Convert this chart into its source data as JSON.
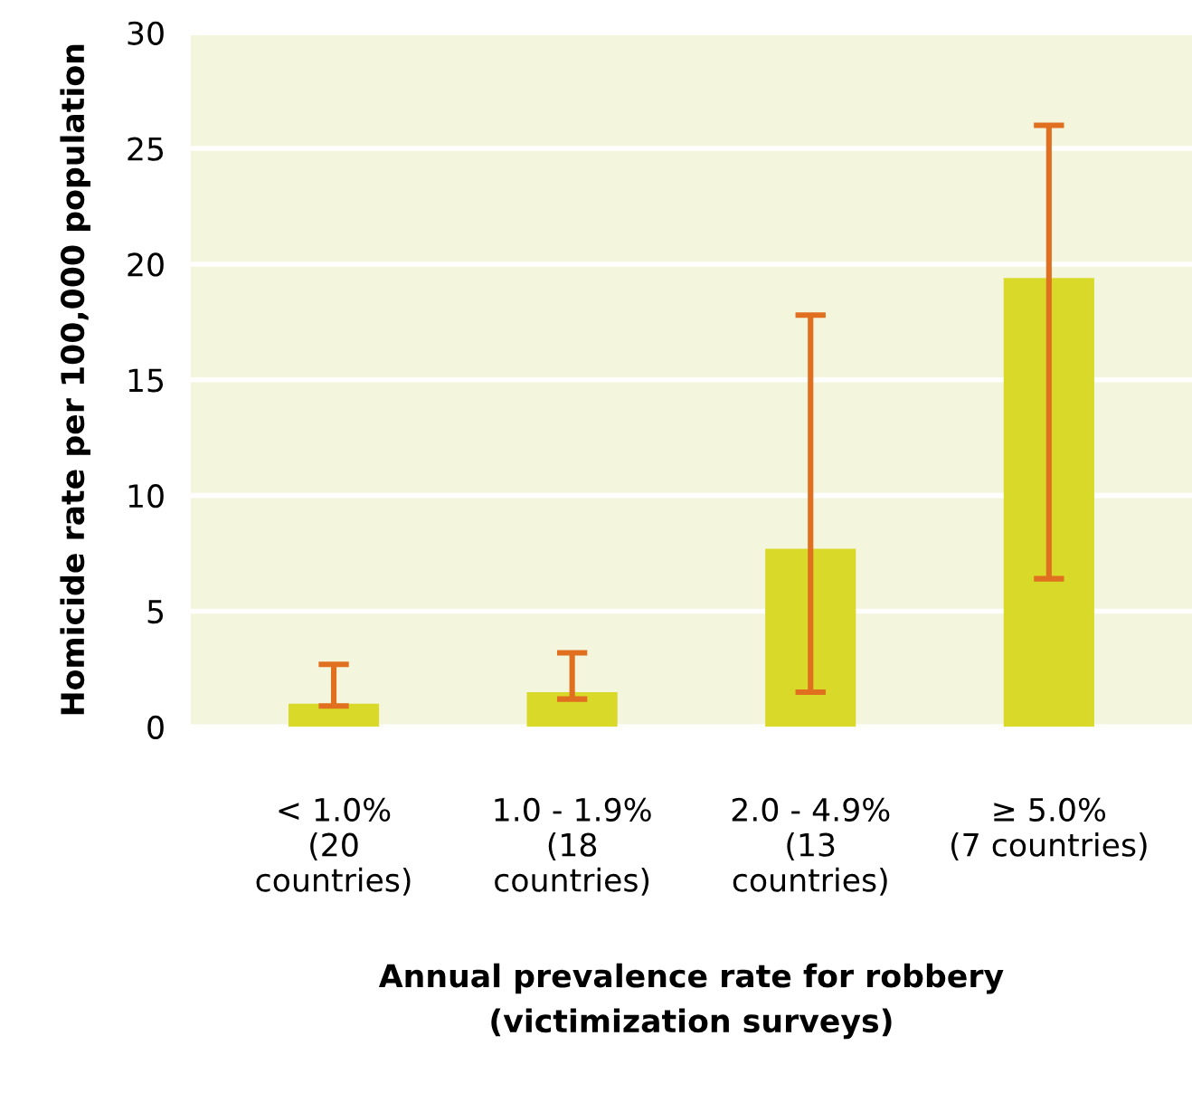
{
  "chart_data": {
    "type": "bar",
    "xlabel": "Annual prevalence rate for robbery\n(victimization surveys)",
    "ylabel": "Homicide rate per 100,000 population",
    "categories": [
      "< 1.0%\n(20\ncountries)",
      "1.0 - 1.9%\n(18\ncountries)",
      "2.0 - 4.9%\n(13\ncountries)",
      "≥ 5.0%\n(7 countries)"
    ],
    "series": [
      {
        "color": "#d9d92a",
        "values": [
          1.0,
          1.5,
          7.7,
          19.4
        ],
        "errors": [
          [
            0.9,
            2.7
          ],
          [
            1.2,
            3.2
          ],
          [
            1.5,
            17.8
          ],
          [
            6.4,
            26.0
          ]
        ]
      }
    ],
    "ylim": [
      0,
      30
    ],
    "yticks": [
      0,
      5,
      10,
      15,
      20,
      25,
      30
    ],
    "grid": "y"
  }
}
